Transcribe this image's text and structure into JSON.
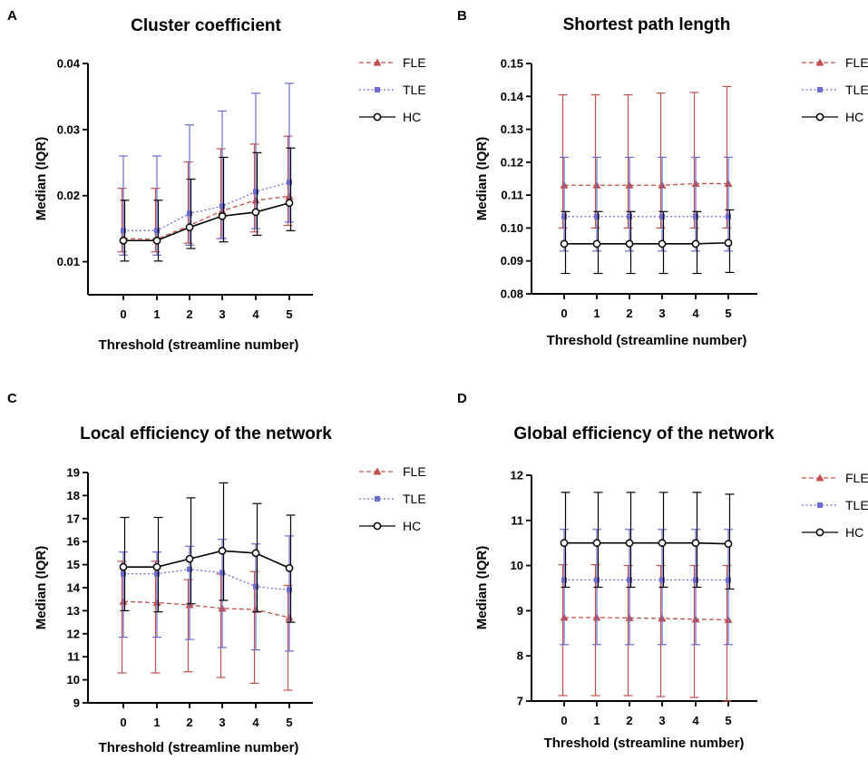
{
  "legend": [
    "FLE",
    "TLE",
    "HC"
  ],
  "colors": {
    "FLE": "#c0504d",
    "TLE": "#6b6bd0",
    "HC": "#000000"
  },
  "chart_data": [
    {
      "panel": "A",
      "type": "line",
      "title": "Cluster coefficient",
      "xlabel": "Threshold (streamline number)",
      "ylabel": "Median (IQR)",
      "categories": [
        "0",
        "1",
        "2",
        "3",
        "4",
        "5"
      ],
      "ylim": [
        0.005,
        0.04
      ],
      "yticks": [
        "0.01",
        "0.02",
        "0.03",
        "0.04"
      ],
      "series": [
        {
          "name": "FLE",
          "values": [
            0.0135,
            0.0134,
            0.0155,
            0.0177,
            0.0193,
            0.0199
          ],
          "low": [
            0.0115,
            0.0115,
            0.0128,
            0.0135,
            0.0145,
            0.0155
          ],
          "high": [
            0.0211,
            0.0211,
            0.0251,
            0.0271,
            0.0278,
            0.029
          ]
        },
        {
          "name": "TLE",
          "values": [
            0.0147,
            0.0147,
            0.0173,
            0.0184,
            0.0206,
            0.022
          ],
          "low": [
            0.011,
            0.011,
            0.0125,
            0.0135,
            0.015,
            0.016
          ],
          "high": [
            0.026,
            0.026,
            0.0307,
            0.0328,
            0.0355,
            0.037
          ]
        },
        {
          "name": "HC",
          "values": [
            0.0132,
            0.0132,
            0.0152,
            0.0169,
            0.0175,
            0.0189
          ],
          "low": [
            0.0101,
            0.0101,
            0.012,
            0.013,
            0.014,
            0.0147
          ],
          "high": [
            0.0193,
            0.0193,
            0.0225,
            0.0258,
            0.0265,
            0.0272
          ]
        }
      ]
    },
    {
      "panel": "B",
      "type": "line",
      "title": "Shortest path length",
      "xlabel": "Threshold (streamline number)",
      "ylabel": "Median (IQR)",
      "categories": [
        "0",
        "1",
        "2",
        "3",
        "4",
        "5"
      ],
      "ylim": [
        0.08,
        0.15
      ],
      "yticks": [
        "0.08",
        "0.09",
        "0.10",
        "0.11",
        "0.12",
        "0.13",
        "0.14",
        "0.15"
      ],
      "series": [
        {
          "name": "FLE",
          "values": [
            0.113,
            0.113,
            0.113,
            0.113,
            0.1135,
            0.1135
          ],
          "low": [
            0.1,
            0.1,
            0.1,
            0.1,
            0.1,
            0.1
          ],
          "high": [
            0.1405,
            0.1405,
            0.1405,
            0.141,
            0.1412,
            0.143
          ]
        },
        {
          "name": "TLE",
          "values": [
            0.1035,
            0.1035,
            0.1035,
            0.1035,
            0.1035,
            0.1035
          ],
          "low": [
            0.093,
            0.093,
            0.093,
            0.093,
            0.093,
            0.093
          ],
          "high": [
            0.1215,
            0.1215,
            0.1215,
            0.1215,
            0.1215,
            0.1215
          ]
        },
        {
          "name": "HC",
          "values": [
            0.0952,
            0.0952,
            0.0952,
            0.0952,
            0.0952,
            0.0955
          ],
          "low": [
            0.0862,
            0.0862,
            0.0862,
            0.0862,
            0.0862,
            0.0865
          ],
          "high": [
            0.105,
            0.105,
            0.105,
            0.105,
            0.105,
            0.1055
          ]
        }
      ]
    },
    {
      "panel": "C",
      "type": "line",
      "title": "Local efficiency of the network",
      "xlabel": "Threshold (streamline number)",
      "ylabel": "Median (IQR)",
      "categories": [
        "0",
        "1",
        "2",
        "3",
        "4",
        "5"
      ],
      "ylim": [
        9,
        19
      ],
      "yticks": [
        "9",
        "10",
        "11",
        "12",
        "13",
        "14",
        "15",
        "16",
        "17",
        "18",
        "19"
      ],
      "series": [
        {
          "name": "FLE",
          "values": [
            13.4,
            13.35,
            13.25,
            13.1,
            13.05,
            12.7
          ],
          "low": [
            10.3,
            10.3,
            10.35,
            10.1,
            9.85,
            9.55
          ],
          "high": [
            15.15,
            15.15,
            14.35,
            14.6,
            14.7,
            14.1
          ]
        },
        {
          "name": "TLE",
          "values": [
            14.6,
            14.6,
            14.8,
            14.65,
            14.05,
            13.9
          ],
          "low": [
            11.85,
            11.85,
            11.75,
            11.4,
            11.3,
            11.25
          ],
          "high": [
            15.55,
            15.55,
            15.8,
            16.1,
            15.9,
            16.25
          ]
        },
        {
          "name": "HC",
          "values": [
            14.9,
            14.9,
            15.25,
            15.6,
            15.5,
            14.85
          ],
          "low": [
            13.0,
            12.95,
            13.3,
            13.45,
            12.95,
            12.5
          ],
          "high": [
            17.05,
            17.05,
            17.9,
            18.55,
            17.65,
            17.15
          ]
        }
      ]
    },
    {
      "panel": "D",
      "type": "line",
      "title": "Global efficiency of the network",
      "xlabel": "Threshold (streamline number)",
      "ylabel": "Median (IQR)",
      "categories": [
        "0",
        "1",
        "2",
        "3",
        "4",
        "5"
      ],
      "ylim": [
        7,
        12
      ],
      "yticks": [
        "7",
        "8",
        "9",
        "10",
        "11",
        "12"
      ],
      "series": [
        {
          "name": "FLE",
          "values": [
            8.85,
            8.85,
            8.84,
            8.83,
            8.81,
            8.8
          ],
          "low": [
            7.12,
            7.12,
            7.12,
            7.1,
            7.08,
            7.0
          ],
          "high": [
            10.02,
            10.02,
            10.0,
            10.0,
            10.0,
            10.0
          ]
        },
        {
          "name": "TLE",
          "values": [
            9.68,
            9.68,
            9.68,
            9.68,
            9.68,
            9.68
          ],
          "low": [
            8.25,
            8.25,
            8.25,
            8.25,
            8.25,
            8.25
          ],
          "high": [
            10.8,
            10.8,
            10.8,
            10.8,
            10.8,
            10.8
          ]
        },
        {
          "name": "HC",
          "values": [
            10.5,
            10.5,
            10.5,
            10.5,
            10.5,
            10.48
          ],
          "low": [
            9.52,
            9.52,
            9.52,
            9.52,
            9.52,
            9.48
          ],
          "high": [
            11.62,
            11.62,
            11.62,
            11.62,
            11.62,
            11.58
          ]
        }
      ]
    }
  ]
}
